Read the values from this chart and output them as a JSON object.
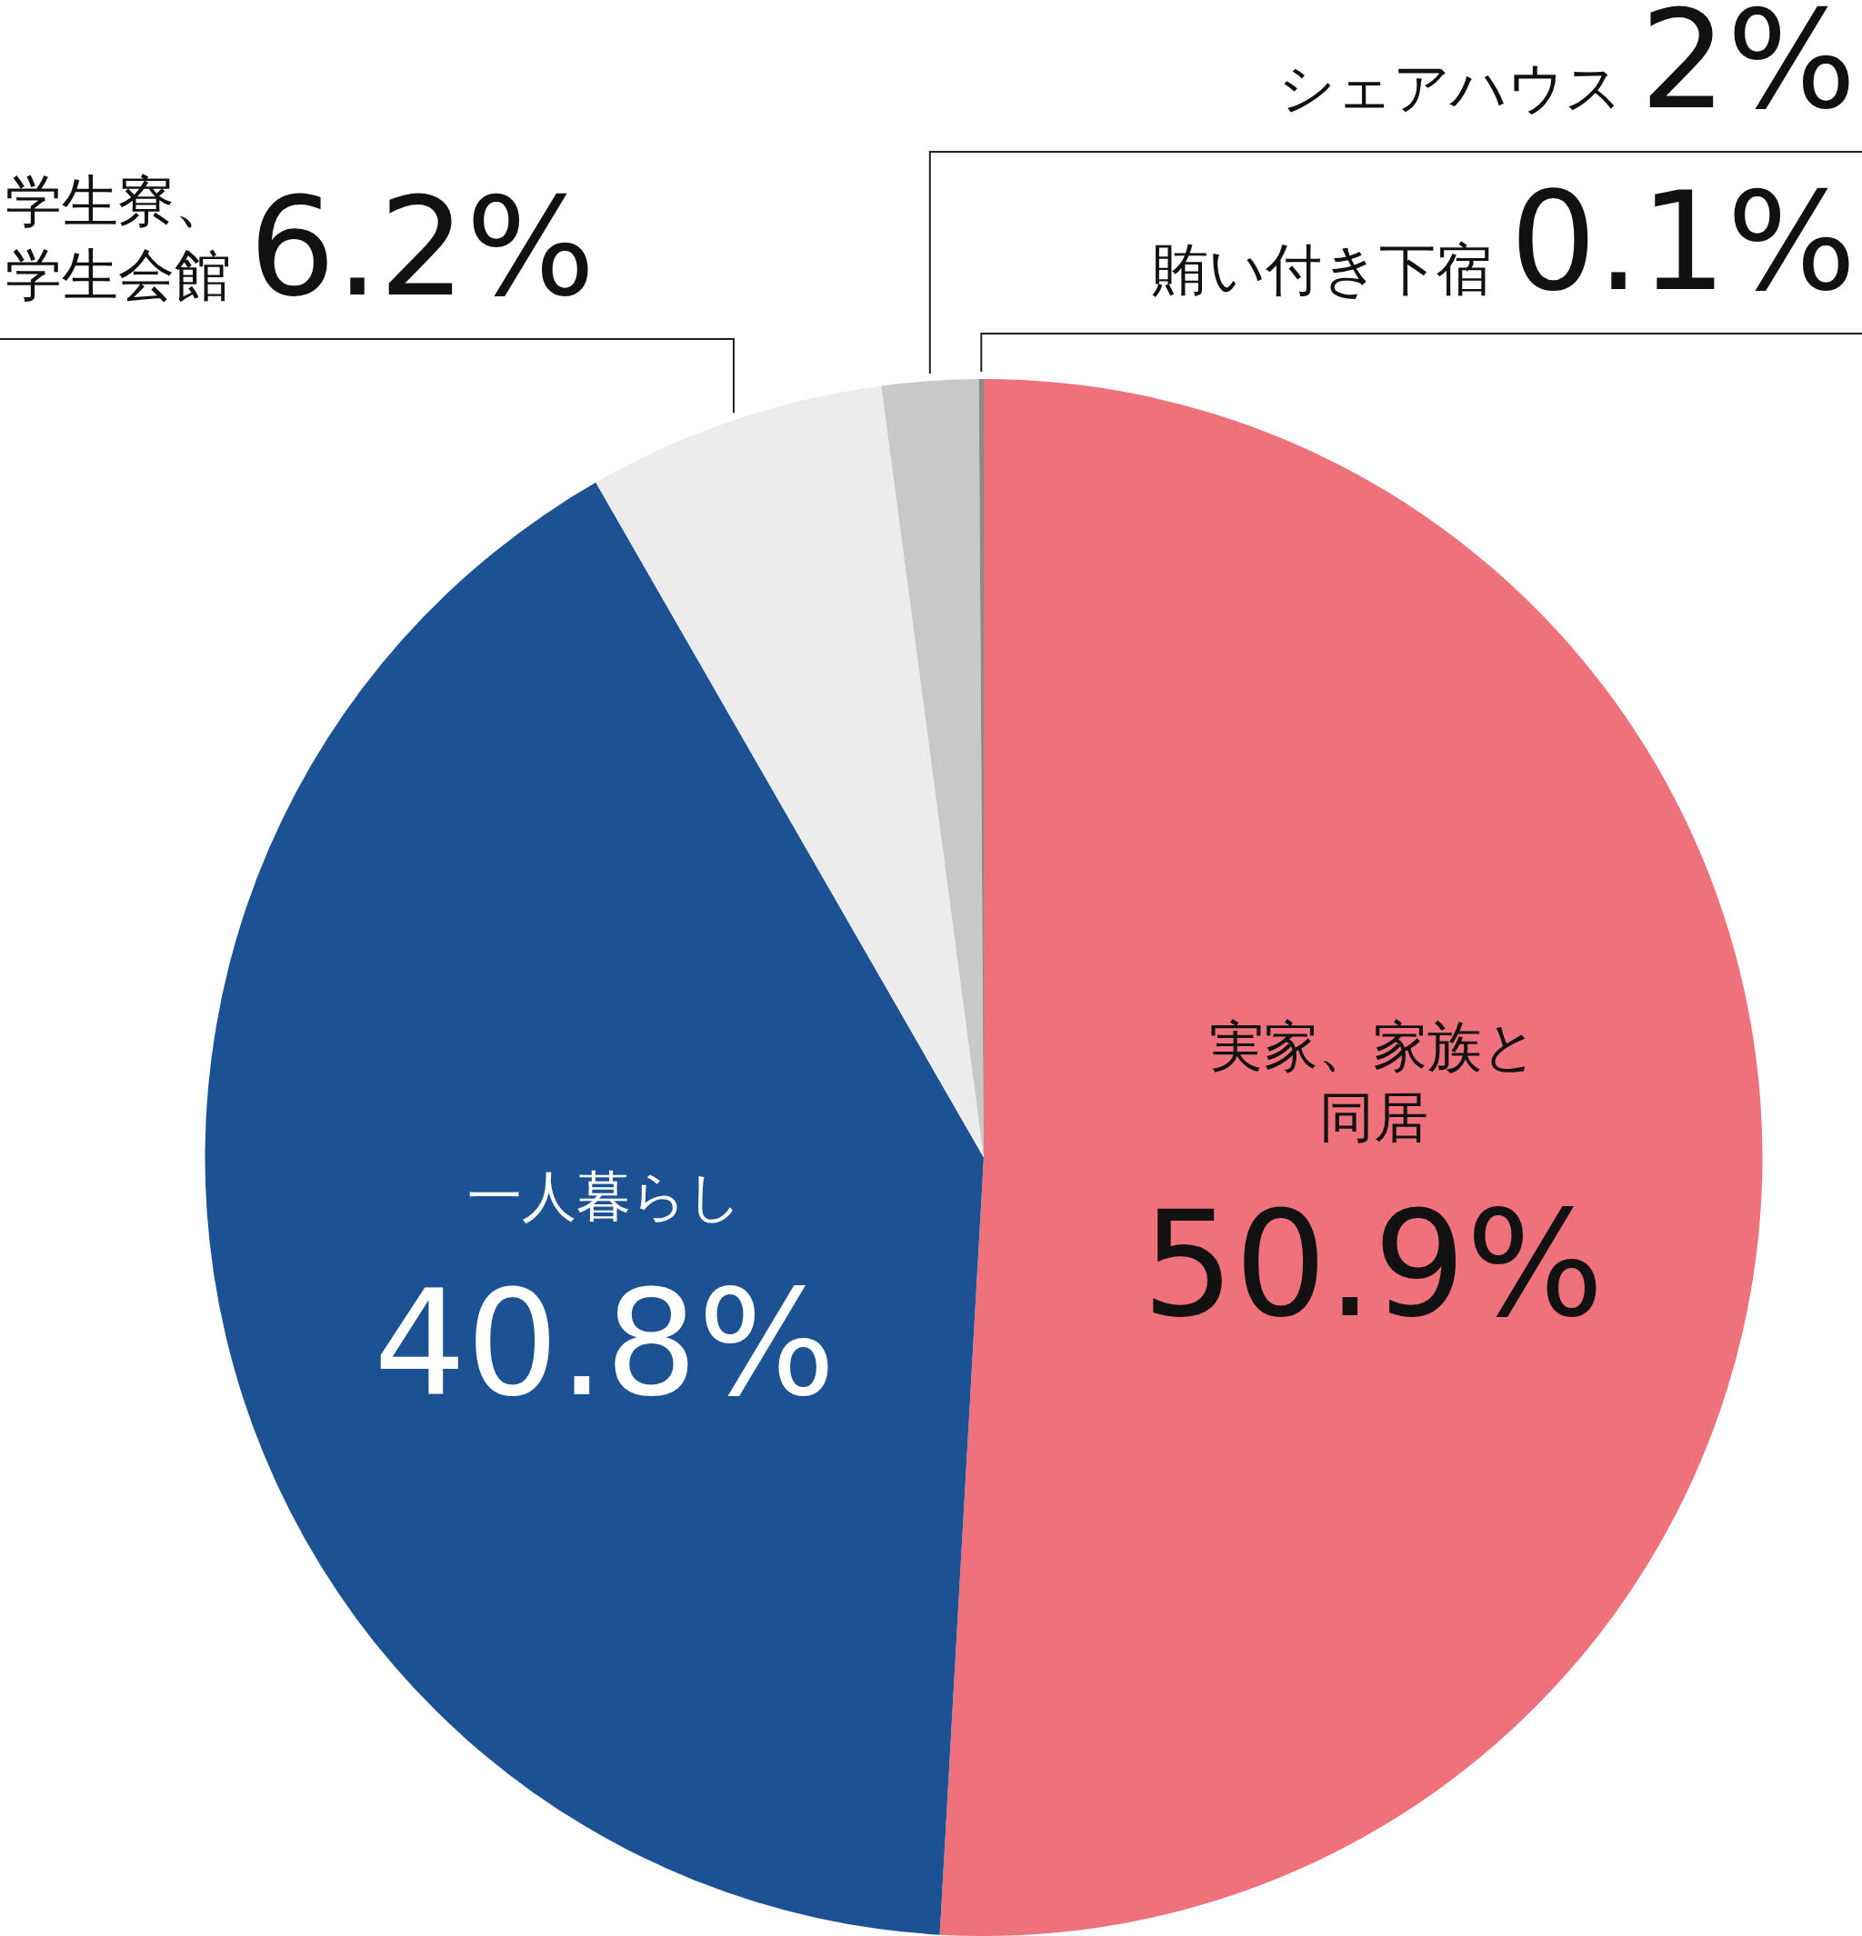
{
  "chart_data": {
    "type": "pie",
    "categories": [
      "実家、家族と同居",
      "一人暮らし",
      "学生寮、学生会館",
      "シェアハウス",
      "賄い付き下宿"
    ],
    "values": [
      50.9,
      40.8,
      6.2,
      2,
      0.1
    ],
    "value_labels": [
      "50.9%",
      "40.8%",
      "6.2%",
      "2%",
      "0.1%"
    ],
    "colors": [
      "#ef717c",
      "#1c5294",
      "#ececec",
      "#c8c8c8",
      "#8a8a8a"
    ]
  }
}
